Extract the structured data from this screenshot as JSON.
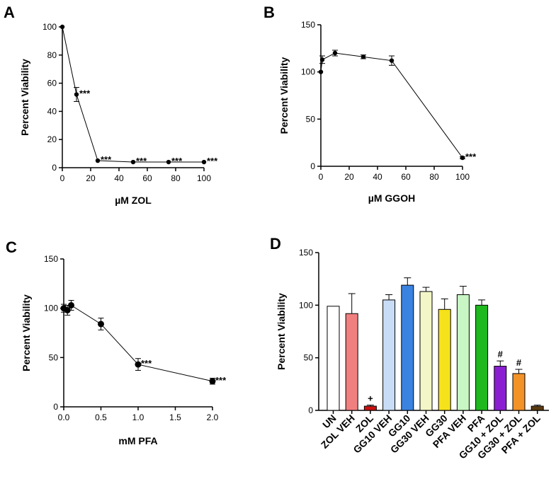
{
  "chart_data": [
    {
      "panel": "A",
      "type": "line",
      "xlabel": "µM ZOL",
      "ylabel": "Percent Viability",
      "xlim": [
        0,
        100
      ],
      "ylim": [
        0,
        100
      ],
      "xticks": [
        "0",
        "20",
        "40",
        "60",
        "80",
        "100"
      ],
      "yticks": [
        "0",
        "20",
        "40",
        "60",
        "80",
        "100"
      ],
      "x": [
        0,
        10,
        25,
        50,
        75,
        100
      ],
      "y": [
        100,
        52,
        5,
        4,
        4,
        4
      ],
      "error": [
        0,
        5,
        0,
        0,
        0,
        0
      ],
      "annotations": [
        "",
        "***",
        "***",
        "***",
        "***",
        "***"
      ]
    },
    {
      "panel": "B",
      "type": "line",
      "xlabel": "µM GGOH",
      "ylabel": "Percent Viability",
      "xlim": [
        0,
        100
      ],
      "ylim": [
        0,
        150
      ],
      "xticks": [
        "0",
        "20",
        "40",
        "60",
        "80",
        "100"
      ],
      "yticks": [
        "0",
        "50",
        "100",
        "150"
      ],
      "x": [
        0,
        1,
        10,
        30,
        50,
        100
      ],
      "y": [
        100,
        113,
        120,
        116,
        112,
        9
      ],
      "error": [
        0,
        4,
        3,
        2,
        5,
        1
      ],
      "annotations": [
        "",
        "",
        "",
        "",
        "",
        "***"
      ]
    },
    {
      "panel": "C",
      "type": "line",
      "xlabel": "mM PFA",
      "ylabel": "Percent Viability",
      "xlim": [
        0,
        2
      ],
      "ylim": [
        0,
        150
      ],
      "xticks": [
        "0.0",
        "0.5",
        "1.0",
        "1.5",
        "2.0"
      ],
      "yticks": [
        "0",
        "50",
        "100",
        "150"
      ],
      "x": [
        0,
        0.05,
        0.1,
        0.5,
        1.0,
        2.0
      ],
      "y": [
        100,
        98,
        103,
        84,
        43,
        26
      ],
      "error": [
        4,
        5,
        5,
        6,
        6,
        3
      ],
      "annotations": [
        "",
        "",
        "",
        "",
        "***",
        "***"
      ]
    },
    {
      "panel": "D",
      "type": "bar",
      "ylabel": "Percent Viability",
      "ylim": [
        0,
        150
      ],
      "yticks": [
        "0",
        "50",
        "100",
        "150"
      ],
      "categories": [
        "UN",
        "ZOL VEH",
        "ZOL",
        "GG10 VEH",
        "GG10",
        "GG30 VEH",
        "GG30",
        "PFA VEH",
        "PFA",
        "GG10 + ZOL",
        "GG30 + ZOL",
        "PFA + ZOL"
      ],
      "values": [
        99,
        92,
        4,
        105,
        119,
        113,
        96,
        110,
        100,
        42,
        35,
        4
      ],
      "error": [
        0,
        19,
        1,
        5,
        7,
        4,
        10,
        8,
        5,
        5,
        4,
        1
      ],
      "colors": [
        "#ffffff",
        "#f08080",
        "#cc1111",
        "#c9dcf6",
        "#3b83e0",
        "#f3f6c6",
        "#f6e21a",
        "#c8f6c4",
        "#1fb81f",
        "#8a1fd1",
        "#f39227",
        "#5a3a10"
      ],
      "annotations": [
        "",
        "",
        "+",
        "",
        "",
        "",
        "",
        "",
        "",
        "#",
        "#",
        ""
      ]
    }
  ]
}
